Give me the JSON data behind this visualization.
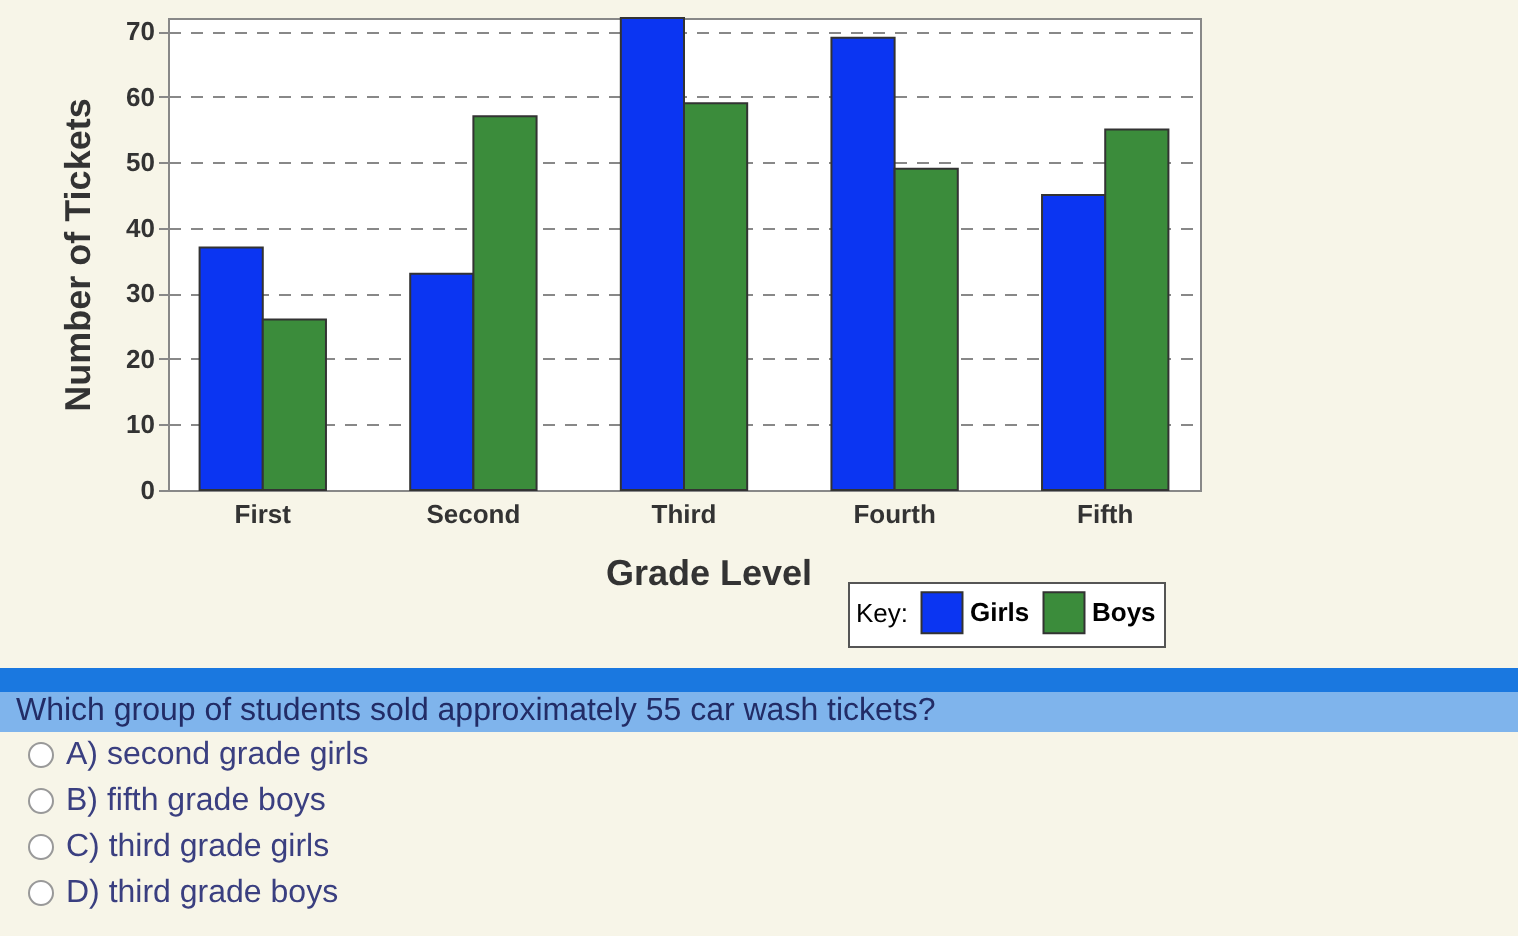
{
  "chart_data": {
    "type": "bar",
    "xlabel": "Grade Level",
    "ylabel": "Number of Tickets",
    "legend_title": "Key:",
    "categories": [
      "First",
      "Second",
      "Third",
      "Fourth",
      "Fifth"
    ],
    "series": [
      {
        "name": "Girls",
        "color": "#0b35f2",
        "values": [
          37,
          33,
          72,
          69,
          45
        ]
      },
      {
        "name": "Boys",
        "color": "#3b8c3b",
        "values": [
          26,
          57,
          59,
          49,
          55
        ]
      }
    ],
    "ylim": [
      0,
      72
    ],
    "yticks": [
      0,
      10,
      20,
      30,
      40,
      50,
      60,
      70
    ],
    "grid": "y",
    "legend": "bottom right",
    "annotations": [
      "Which group of students sold approximately 55 car wash tickets?",
      "A)  second grade girls",
      "B)  fifth grade boys",
      "C)  third grade girls",
      "D)  third grade boys"
    ]
  }
}
